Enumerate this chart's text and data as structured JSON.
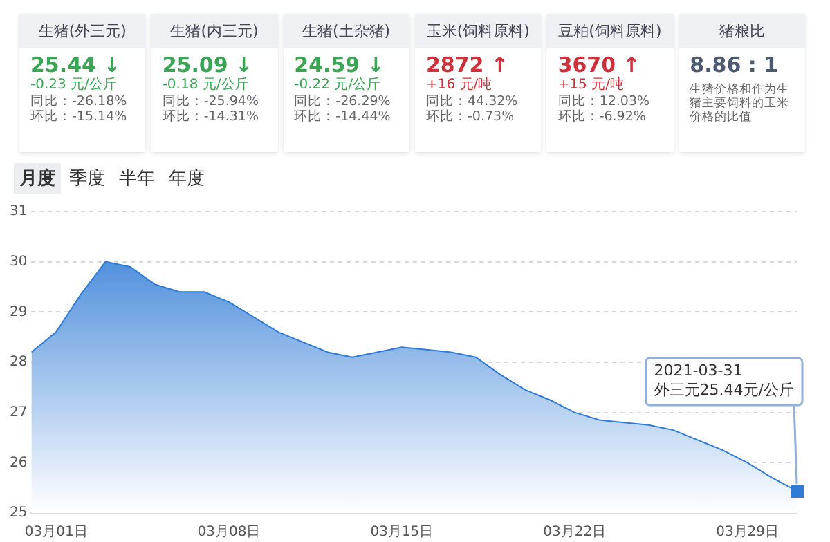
{
  "chart_data": [
    {
      "type": "other",
      "title": "生猪(外三元)",
      "color": "#3aa655",
      "annotations": [
        "25.44 ↓",
        "-0.23 元/公斤",
        "同比：-26.18%",
        "环比：-15.14%"
      ]
    },
    {
      "type": "other",
      "title": "生猪(内三元)",
      "color": "#3aa655",
      "annotations": [
        "25.09 ↓",
        "-0.18 元/公斤",
        "同比：-25.94%",
        "环比：-14.31%"
      ]
    },
    {
      "type": "other",
      "title": "生猪(土杂猪)",
      "color": "#3aa655",
      "annotations": [
        "24.59 ↓",
        "-0.22 元/公斤",
        "同比：-26.29%",
        "环比：-14.44%"
      ]
    },
    {
      "type": "other",
      "title": "玉米(饲料原料)",
      "color": "#d0303a",
      "annotations": [
        "2872 ↑",
        "+16 元/吨",
        "同比：44.32%",
        "环比：-0.73%"
      ]
    },
    {
      "type": "other",
      "title": "豆粕(饲料原料)",
      "color": "#d0303a",
      "annotations": [
        "3670 ↑",
        "+15 元/吨",
        "同比：12.03%",
        "环比：-6.92%"
      ]
    },
    {
      "type": "other",
      "title": "猪粮比",
      "color": "#4a5a70",
      "annotations": [
        "8.86 : 1",
        "生猪价格和作为生猪主要饲料的玉米价格的比值"
      ]
    },
    {
      "type": "area",
      "color": "#2f7bd6",
      "x": [
        "2021-02-28",
        "2021-03-01",
        "2021-03-02",
        "2021-03-03",
        "2021-03-04",
        "2021-03-05",
        "2021-03-06",
        "2021-03-07",
        "2021-03-08",
        "2021-03-09",
        "2021-03-10",
        "2021-03-11",
        "2021-03-12",
        "2021-03-13",
        "2021-03-14",
        "2021-03-15",
        "2021-03-16",
        "2021-03-17",
        "2021-03-18",
        "2021-03-19",
        "2021-03-20",
        "2021-03-21",
        "2021-03-22",
        "2021-03-23",
        "2021-03-24",
        "2021-03-25",
        "2021-03-26",
        "2021-03-27",
        "2021-03-28",
        "2021-03-29",
        "2021-03-30",
        "2021-03-31"
      ],
      "values": [
        28.2,
        28.6,
        29.35,
        30.0,
        29.9,
        29.55,
        29.4,
        29.4,
        29.2,
        28.9,
        28.6,
        28.4,
        28.2,
        28.1,
        28.2,
        28.3,
        28.25,
        28.2,
        28.1,
        27.75,
        27.45,
        27.25,
        27.0,
        26.85,
        26.8,
        26.75,
        26.65,
        26.45,
        26.25,
        26.0,
        25.7,
        25.44
      ],
      "xlim": [
        "2021-02-28",
        "2021-03-31"
      ],
      "xticks": [
        {
          "value": "2021-03-01",
          "label": "03月01日"
        },
        {
          "value": "2021-03-08",
          "label": "03月08日"
        },
        {
          "value": "2021-03-15",
          "label": "03月15日"
        },
        {
          "value": "2021-03-22",
          "label": "03月22日"
        },
        {
          "value": "2021-03-29",
          "label": "03月29日"
        }
      ],
      "ylim": [
        25,
        31
      ],
      "yticks": [
        25,
        26,
        27,
        28,
        29,
        30,
        31
      ],
      "grid": "y",
      "legend": false,
      "annotations": [
        "月度",
        "季度",
        "半年",
        "年度",
        {
          "text": "2021-03-31\n外三元25.44元/公斤",
          "x": "2021-03-31",
          "y": 25.44
        }
      ]
    }
  ]
}
